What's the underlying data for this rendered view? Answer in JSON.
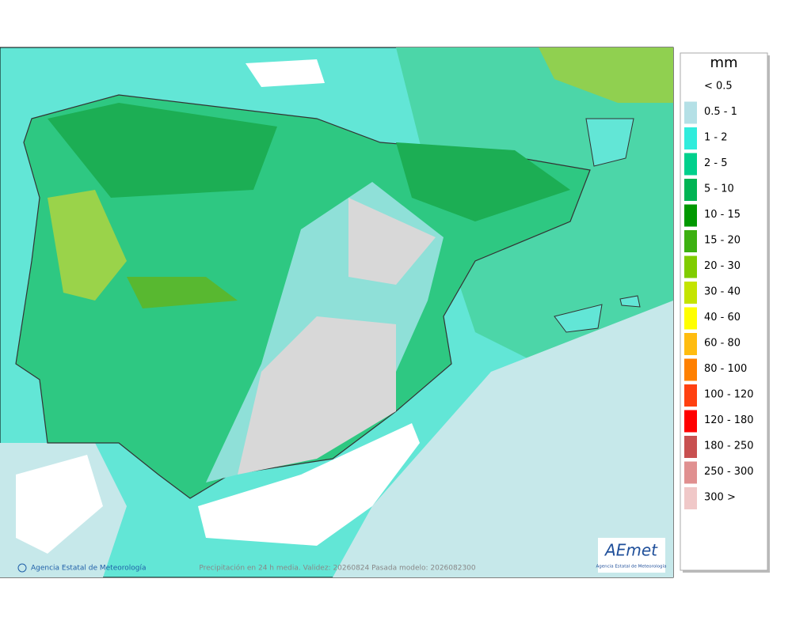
{
  "legend": {
    "title": "mm",
    "items": [
      {
        "label": "< 0.5"
      },
      {
        "label": "0.5 - 1",
        "color": "#b4e0e6"
      },
      {
        "label": "1 - 2",
        "color": "#30ecdc"
      },
      {
        "label": "2 - 5",
        "color": "#00d08c"
      },
      {
        "label": "5 - 10",
        "color": "#00b454"
      },
      {
        "label": "10 - 15",
        "color": "#009800"
      },
      {
        "label": "15 - 20",
        "color": "#3cb010"
      },
      {
        "label": "20 - 30",
        "color": "#80cc00"
      },
      {
        "label": "30 - 40",
        "color": "#c4e400"
      },
      {
        "label": "40 - 60",
        "color": "#ffff00"
      },
      {
        "label": "60 - 80",
        "color": "#ffbc10"
      },
      {
        "label": "80 - 100",
        "color": "#ff8000"
      },
      {
        "label": "100 - 120",
        "color": "#ff4010"
      },
      {
        "label": "120 - 180",
        "color": "#ff0000"
      },
      {
        "label": "180 - 250",
        "color": "#c85050"
      },
      {
        "label": "250 - 300",
        "color": "#e09090"
      },
      {
        "label": "300 >",
        "color": "#f0c8c8"
      }
    ]
  },
  "footer": {
    "credit": "Agencia Estatal de Meteorología",
    "caption": "Precipitación en 24 h media. Validez: 20260824 Pasada modelo: 2026082300"
  },
  "logo": {
    "name": "AEmet",
    "subtitle": "Agencia Estatal de Meteorología"
  }
}
